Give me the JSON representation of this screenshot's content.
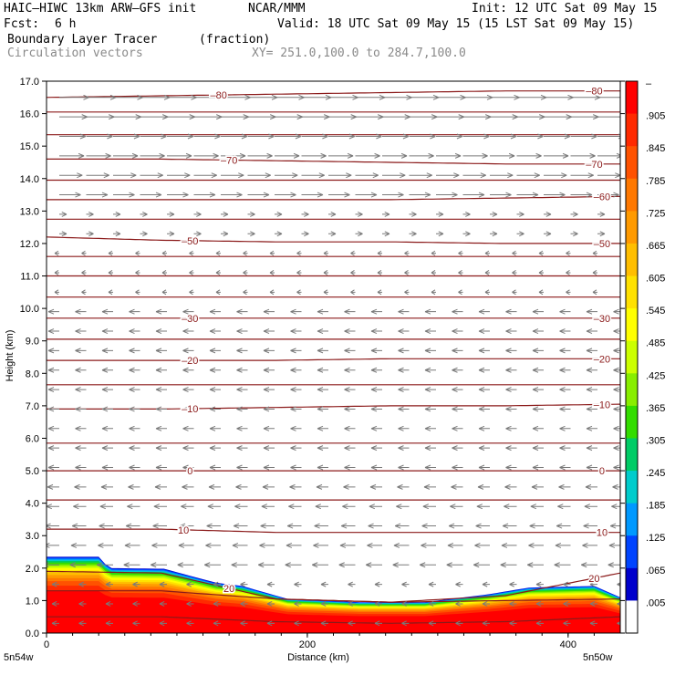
{
  "header": {
    "model": "HAIC–HIWC 13km ARW–GFS init",
    "org": "NCAR/MMM",
    "init": "Init: 12 UTC Sat 09 May 15",
    "fcst_label": "Fcst:",
    "fcst_value": "6 h",
    "valid": "Valid: 18 UTC Sat 09 May 15 (15 LST Sat 09 May 15)",
    "field": "Boundary Layer Tracer",
    "field_units": "(fraction)",
    "overlay": "Circulation vectors",
    "section": "XY= 251.0,100.0 to 284.7,100.0"
  },
  "colors": {
    "contour": "#8b1a1a",
    "vector": "#7a7a7a",
    "gray_text": "#8a8a8a"
  },
  "chart_data": {
    "type": "heatmap",
    "xlabel": "Distance (km)",
    "ylabel": "Height (km)",
    "xlim": [
      0,
      440
    ],
    "ylim": [
      0,
      17
    ],
    "x_ticks": [
      0,
      200,
      400
    ],
    "y_ticks": [
      "0.0",
      "1.0",
      "2.0",
      "3.0",
      "4.0",
      "5.0",
      "6.0",
      "7.0",
      "8.0",
      "9.0",
      "10.0",
      "11.0",
      "12.0",
      "13.0",
      "14.0",
      "15.0",
      "16.0",
      "17.0"
    ],
    "x_endpoint_left": "5n54w",
    "x_endpoint_right": "5n50w",
    "colorbar": {
      "labels": [
        "–",
        ".905",
        ".845",
        ".785",
        ".725",
        ".665",
        ".605",
        ".545",
        ".485",
        ".425",
        ".365",
        ".305",
        ".245",
        ".185",
        ".125",
        ".065",
        ".005"
      ],
      "colors": [
        "#ff0000",
        "#ff2a00",
        "#ff5200",
        "#ff7800",
        "#ff9a00",
        "#ffbe00",
        "#ffe100",
        "#ffff00",
        "#ccff00",
        "#88ee00",
        "#33dd00",
        "#00cc66",
        "#00cccc",
        "#0099ff",
        "#0044ff",
        "#0000cc",
        "#ffffff"
      ]
    },
    "tracer_top": [
      {
        "x": 0,
        "y": 2.35
      },
      {
        "x": 40,
        "y": 2.35
      },
      {
        "x": 48,
        "y": 2.0
      },
      {
        "x": 90,
        "y": 1.98
      },
      {
        "x": 130,
        "y": 1.55
      },
      {
        "x": 150,
        "y": 1.45
      },
      {
        "x": 185,
        "y": 1.05
      },
      {
        "x": 240,
        "y": 0.95
      },
      {
        "x": 290,
        "y": 0.95
      },
      {
        "x": 340,
        "y": 1.2
      },
      {
        "x": 370,
        "y": 1.4
      },
      {
        "x": 420,
        "y": 1.45
      },
      {
        "x": 440,
        "y": 1.1
      }
    ],
    "temperature_contours": [
      {
        "label": "20",
        "heights": [
          1.9,
          1.85,
          1.05,
          0.95,
          1.15,
          1.85
        ],
        "label_x": [
          140,
          420
        ]
      },
      {
        "label": "10",
        "heights": [
          3.2,
          3.2,
          3.1,
          3.1,
          3.1,
          3.1
        ],
        "label_x": [
          105,
          426
        ]
      },
      {
        "label": "0",
        "heights": [
          5.0,
          5.0,
          5.0,
          5.0,
          5.0,
          5.0
        ],
        "label_x": [
          110,
          426
        ]
      },
      {
        "label": "–10",
        "heights": [
          6.9,
          6.9,
          6.95,
          7.0,
          7.0,
          7.05
        ],
        "label_x": [
          110,
          426
        ]
      },
      {
        "label": "–20",
        "heights": [
          8.4,
          8.4,
          8.4,
          8.45,
          8.45,
          8.45
        ],
        "label_x": [
          110,
          426
        ]
      },
      {
        "label": "–30",
        "heights": [
          9.7,
          9.7,
          9.7,
          9.7,
          9.7,
          9.7
        ],
        "label_x": [
          110,
          426
        ]
      },
      {
        "label": "–50",
        "heights": [
          12.2,
          12.1,
          12.05,
          12.05,
          12.0,
          12.0
        ],
        "label_x": [
          110,
          426
        ]
      },
      {
        "label": "–60",
        "heights": [
          13.35,
          13.35,
          13.35,
          13.35,
          13.4,
          13.45
        ],
        "label_x": [
          426
        ]
      },
      {
        "label": "–70",
        "heights": [
          14.6,
          14.6,
          14.55,
          14.5,
          14.45,
          14.45
        ],
        "label_x": [
          140,
          420
        ]
      },
      {
        "label": "–80",
        "heights": [
          16.5,
          16.55,
          16.6,
          16.65,
          16.7,
          16.7
        ],
        "label_x": [
          132,
          420
        ]
      }
    ],
    "unlabeled_contours": [
      [
        0.5,
        0.5,
        0.35,
        0.3,
        0.35,
        0.5
      ],
      [
        1.3,
        1.3,
        1.05,
        0.95,
        1.0,
        1.05
      ],
      [
        4.1,
        4.1,
        4.1,
        4.1,
        4.1,
        4.1
      ],
      [
        5.85,
        5.85,
        5.85,
        5.85,
        5.85,
        5.85
      ],
      [
        7.65,
        7.65,
        7.65,
        7.65,
        7.65,
        7.65
      ],
      [
        9.05,
        9.05,
        9.05,
        9.05,
        9.05,
        9.05
      ],
      [
        10.35,
        10.35,
        10.35,
        10.35,
        10.35,
        10.35
      ],
      [
        11.0,
        11.0,
        11.0,
        11.0,
        11.0,
        11.0
      ],
      [
        11.6,
        11.6,
        11.6,
        11.6,
        11.6,
        11.6
      ],
      [
        12.75,
        12.75,
        12.75,
        12.75,
        12.75,
        12.75
      ],
      [
        13.95,
        13.95,
        13.95,
        13.95,
        13.95,
        13.95
      ],
      [
        15.35,
        15.35,
        15.35,
        15.35,
        15.35,
        15.35
      ],
      [
        16.05,
        16.05,
        16.05,
        16.05,
        16.05,
        16.05
      ]
    ]
  }
}
